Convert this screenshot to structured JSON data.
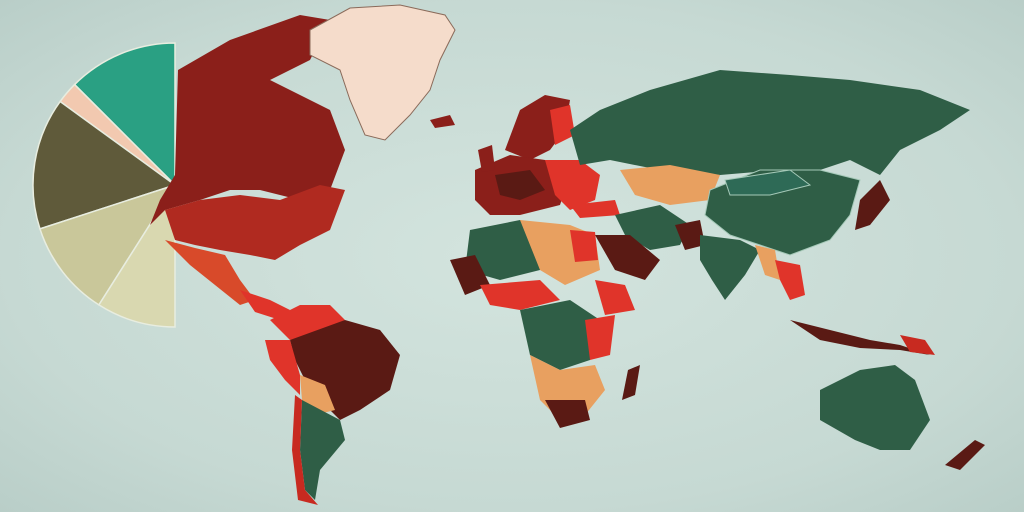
{
  "colors": {
    "ocean": "#c9dcd6",
    "dark_green": "#2f5e46",
    "teal_green": "#2e6a56",
    "dark_red": "#8b1f1a",
    "red": "#c82a20",
    "bright_red": "#e0342a",
    "maroon": "#5a1a14",
    "orange": "#e8a060",
    "peach": "#f5dccb"
  },
  "pie": {
    "type": "pie",
    "slices": [
      {
        "fraction": 0.125,
        "color": "#2aa083"
      },
      {
        "fraction": 0.025,
        "color": "#f2c9b0"
      },
      {
        "fraction": 0.15,
        "color": "#5f5a3a"
      },
      {
        "fraction": 0.11,
        "color": "#c9c79a"
      },
      {
        "fraction": 0.09,
        "color": "#d9d8b0"
      }
    ]
  }
}
